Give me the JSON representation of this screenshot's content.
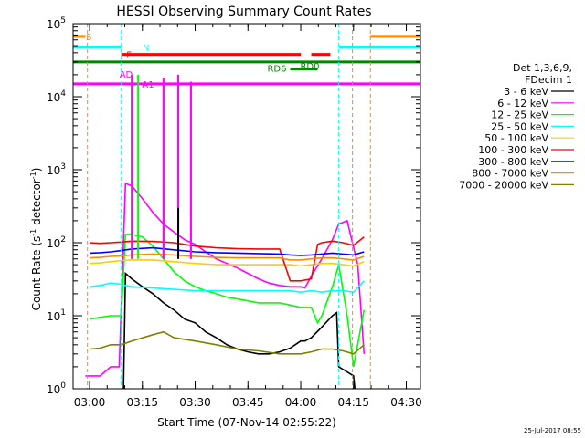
{
  "chart_data": {
    "type": "line",
    "title": "HESSI Observing Summary Count Rates",
    "xlabel": "Start Time (07-Nov-14 02:55:22)",
    "ylabel": "Count Rate (s⁻¹ detector⁻¹)",
    "ylabel_main": "Count Rate (s",
    "ylabel_sup1": "-1",
    "ylabel_mid": " detector",
    "ylabel_sup2": "-1",
    "ylabel_end": ")",
    "y_scale": "log",
    "xlim": [
      2.922,
      4.567
    ],
    "ylim": [
      1,
      100000
    ],
    "x_ticks": [
      {
        "value": 3.0,
        "label": "03:00"
      },
      {
        "value": 3.25,
        "label": "03:15"
      },
      {
        "value": 3.5,
        "label": "03:30"
      },
      {
        "value": 3.75,
        "label": "03:45"
      },
      {
        "value": 4.0,
        "label": "04:00"
      },
      {
        "value": 4.25,
        "label": "04:15"
      },
      {
        "value": 4.5,
        "label": "04:30"
      }
    ],
    "y_ticks": [
      {
        "value": 1,
        "base": "10",
        "exp": "0"
      },
      {
        "value": 10,
        "base": "10",
        "exp": "1"
      },
      {
        "value": 100,
        "base": "10",
        "exp": "2"
      },
      {
        "value": 1000,
        "base": "10",
        "exp": "3"
      },
      {
        "value": 10000,
        "base": "10",
        "exp": "4"
      },
      {
        "value": 100000,
        "base": "10",
        "exp": "5"
      }
    ],
    "legend_title": [
      "Det 1,3,6,9,",
      "FDecim 1"
    ],
    "series": [
      {
        "name": "3 - 6 keV",
        "color": "#000000",
        "points": [
          [
            3.16,
            0.8
          ],
          [
            3.17,
            38
          ],
          [
            3.2,
            32
          ],
          [
            3.25,
            25
          ],
          [
            3.3,
            20
          ],
          [
            3.35,
            15
          ],
          [
            3.4,
            12
          ],
          [
            3.45,
            9
          ],
          [
            3.5,
            8
          ],
          [
            3.55,
            6
          ],
          [
            3.6,
            5
          ],
          [
            3.65,
            4
          ],
          [
            3.7,
            3.5
          ],
          [
            3.75,
            3.2
          ],
          [
            3.8,
            3
          ],
          [
            3.85,
            3
          ],
          [
            3.9,
            3.2
          ],
          [
            3.95,
            3.6
          ],
          [
            4.0,
            4.5
          ],
          [
            4.02,
            4.5
          ],
          [
            4.05,
            5
          ],
          [
            4.1,
            7
          ],
          [
            4.15,
            10
          ],
          [
            4.17,
            11
          ],
          [
            4.18,
            2
          ],
          [
            4.25,
            1.5
          ],
          [
            4.26,
            0.8
          ]
        ]
      },
      {
        "name": "6 - 12 keV",
        "color": "#ff00ff",
        "points": [
          [
            2.98,
            1.5
          ],
          [
            3.05,
            1.5
          ],
          [
            3.1,
            2
          ],
          [
            3.14,
            2
          ],
          [
            3.17,
            650
          ],
          [
            3.2,
            600
          ],
          [
            3.25,
            400
          ],
          [
            3.3,
            260
          ],
          [
            3.35,
            180
          ],
          [
            3.4,
            140
          ],
          [
            3.45,
            110
          ],
          [
            3.5,
            95
          ],
          [
            3.55,
            75
          ],
          [
            3.6,
            60
          ],
          [
            3.7,
            45
          ],
          [
            3.75,
            38
          ],
          [
            3.8,
            32
          ],
          [
            3.85,
            28
          ],
          [
            3.9,
            26
          ],
          [
            3.95,
            25
          ],
          [
            4.0,
            25
          ],
          [
            4.02,
            24
          ],
          [
            4.05,
            35
          ],
          [
            4.1,
            60
          ],
          [
            4.15,
            110
          ],
          [
            4.18,
            180
          ],
          [
            4.22,
            200
          ],
          [
            4.27,
            50
          ],
          [
            4.3,
            3
          ]
        ]
      },
      {
        "name": "12 - 25 keV",
        "color": "#00ff00",
        "points": [
          [
            3.0,
            9
          ],
          [
            3.05,
            9.5
          ],
          [
            3.1,
            10
          ],
          [
            3.15,
            10
          ],
          [
            3.17,
            130
          ],
          [
            3.2,
            130
          ],
          [
            3.25,
            120
          ],
          [
            3.3,
            90
          ],
          [
            3.35,
            60
          ],
          [
            3.4,
            40
          ],
          [
            3.45,
            30
          ],
          [
            3.5,
            25
          ],
          [
            3.55,
            22
          ],
          [
            3.6,
            20
          ],
          [
            3.65,
            18
          ],
          [
            3.7,
            17
          ],
          [
            3.75,
            16
          ],
          [
            3.8,
            15
          ],
          [
            3.85,
            15
          ],
          [
            3.9,
            15
          ],
          [
            3.95,
            14
          ],
          [
            4.0,
            13
          ],
          [
            4.02,
            13
          ],
          [
            4.05,
            13
          ],
          [
            4.08,
            8
          ],
          [
            4.1,
            10
          ],
          [
            4.15,
            25
          ],
          [
            4.18,
            50
          ],
          [
            4.22,
            10
          ],
          [
            4.25,
            2
          ],
          [
            4.3,
            12
          ]
        ]
      },
      {
        "name": "25 - 50 keV",
        "color": "#00ffff",
        "points": [
          [
            3.0,
            25
          ],
          [
            3.05,
            26
          ],
          [
            3.1,
            28
          ],
          [
            3.15,
            27
          ],
          [
            3.17,
            26
          ],
          [
            3.2,
            25
          ],
          [
            3.3,
            24
          ],
          [
            3.4,
            23
          ],
          [
            3.5,
            22
          ],
          [
            3.6,
            22
          ],
          [
            3.7,
            22
          ],
          [
            3.8,
            22
          ],
          [
            3.9,
            22
          ],
          [
            3.95,
            22
          ],
          [
            4.0,
            21
          ],
          [
            4.05,
            22
          ],
          [
            4.1,
            21
          ],
          [
            4.15,
            22
          ],
          [
            4.2,
            22
          ],
          [
            4.25,
            21
          ],
          [
            4.3,
            30
          ]
        ]
      },
      {
        "name": "50 - 100 keV",
        "color": "#ffcc00",
        "points": [
          [
            3.0,
            52
          ],
          [
            3.05,
            53
          ],
          [
            3.1,
            55
          ],
          [
            3.15,
            57
          ],
          [
            3.2,
            58
          ],
          [
            3.3,
            58
          ],
          [
            3.4,
            55
          ],
          [
            3.5,
            52
          ],
          [
            3.6,
            50
          ],
          [
            3.7,
            50
          ],
          [
            3.8,
            50
          ],
          [
            3.9,
            50
          ],
          [
            3.95,
            50
          ],
          [
            4.0,
            48
          ],
          [
            4.05,
            50
          ],
          [
            4.1,
            52
          ],
          [
            4.15,
            52
          ],
          [
            4.2,
            50
          ],
          [
            4.25,
            48
          ],
          [
            4.3,
            55
          ]
        ]
      },
      {
        "name": "100 - 300 keV",
        "color": "#ff0000",
        "points": [
          [
            3.0,
            100
          ],
          [
            3.05,
            98
          ],
          [
            3.1,
            100
          ],
          [
            3.15,
            102
          ],
          [
            3.2,
            105
          ],
          [
            3.3,
            104
          ],
          [
            3.4,
            100
          ],
          [
            3.5,
            90
          ],
          [
            3.6,
            85
          ],
          [
            3.7,
            83
          ],
          [
            3.8,
            82
          ],
          [
            3.9,
            82
          ],
          [
            3.95,
            30
          ],
          [
            4.0,
            30
          ],
          [
            4.05,
            32
          ],
          [
            4.08,
            95
          ],
          [
            4.1,
            100
          ],
          [
            4.15,
            105
          ],
          [
            4.2,
            100
          ],
          [
            4.25,
            92
          ],
          [
            4.3,
            120
          ]
        ]
      },
      {
        "name": "300 - 800 keV",
        "color": "#0000ff",
        "points": [
          [
            3.0,
            72
          ],
          [
            3.05,
            73
          ],
          [
            3.1,
            75
          ],
          [
            3.15,
            78
          ],
          [
            3.2,
            82
          ],
          [
            3.3,
            85
          ],
          [
            3.4,
            80
          ],
          [
            3.5,
            75
          ],
          [
            3.6,
            73
          ],
          [
            3.7,
            72
          ],
          [
            3.8,
            71
          ],
          [
            3.9,
            70
          ],
          [
            3.95,
            68
          ],
          [
            4.0,
            67
          ],
          [
            4.05,
            68
          ],
          [
            4.1,
            70
          ],
          [
            4.15,
            72
          ],
          [
            4.2,
            70
          ],
          [
            4.25,
            68
          ],
          [
            4.3,
            75
          ]
        ]
      },
      {
        "name": "800 - 7000 keV",
        "color": "#ff8800",
        "points": [
          [
            3.0,
            62
          ],
          [
            3.05,
            63
          ],
          [
            3.1,
            65
          ],
          [
            3.15,
            66
          ],
          [
            3.2,
            68
          ],
          [
            3.3,
            70
          ],
          [
            3.4,
            68
          ],
          [
            3.5,
            65
          ],
          [
            3.6,
            63
          ],
          [
            3.7,
            62
          ],
          [
            3.8,
            62
          ],
          [
            3.9,
            62
          ],
          [
            3.95,
            58
          ],
          [
            4.0,
            58
          ],
          [
            4.05,
            60
          ],
          [
            4.1,
            62
          ],
          [
            4.15,
            62
          ],
          [
            4.2,
            60
          ],
          [
            4.25,
            58
          ],
          [
            4.3,
            65
          ]
        ]
      },
      {
        "name": "7000 - 20000 keV",
        "color": "#808000",
        "points": [
          [
            3.0,
            3.5
          ],
          [
            3.05,
            3.6
          ],
          [
            3.1,
            4
          ],
          [
            3.15,
            4
          ],
          [
            3.2,
            4.5
          ],
          [
            3.3,
            5.5
          ],
          [
            3.35,
            6
          ],
          [
            3.4,
            5
          ],
          [
            3.5,
            4.5
          ],
          [
            3.6,
            4
          ],
          [
            3.7,
            3.5
          ],
          [
            3.8,
            3.3
          ],
          [
            3.9,
            3
          ],
          [
            3.95,
            3
          ],
          [
            4.0,
            3
          ],
          [
            4.05,
            3.2
          ],
          [
            4.1,
            3.5
          ],
          [
            4.15,
            3.5
          ],
          [
            4.2,
            3.3
          ],
          [
            4.25,
            3
          ],
          [
            4.3,
            4
          ]
        ]
      }
    ],
    "spikes": [
      {
        "x": 3.2,
        "y": 18000,
        "color": "#00ff00"
      },
      {
        "x": 3.23,
        "y": 20000,
        "color": "#00ff00"
      },
      {
        "x": 3.35,
        "y": 15000,
        "color": "#00ff00"
      },
      {
        "x": 3.42,
        "y": 15000,
        "color": "#00ff00"
      },
      {
        "x": 3.48,
        "y": 14000,
        "color": "#00ff00"
      },
      {
        "x": 3.2,
        "y": 20000,
        "color": "#ff00ff"
      },
      {
        "x": 3.35,
        "y": 18000,
        "color": "#ff00ff"
      },
      {
        "x": 3.42,
        "y": 20000,
        "color": "#ff00ff"
      },
      {
        "x": 3.48,
        "y": 16000,
        "color": "#ff00ff"
      },
      {
        "x": 3.42,
        "y": 300,
        "color": "#000000"
      }
    ],
    "status_bars": [
      {
        "label": "S",
        "color": "#ff8800",
        "y": 67000,
        "segments": [
          [
            2.922,
            2.98
          ],
          [
            4.33,
            4.567
          ]
        ]
      },
      {
        "label": "N",
        "color": "#00ffff",
        "y": 48000,
        "segments": [
          [
            2.922,
            3.15
          ],
          [
            4.18,
            4.567
          ]
        ]
      },
      {
        "label": "F",
        "color": "#ff0000",
        "y": 38000,
        "segments": [
          [
            3.15,
            4.0
          ],
          [
            4.05,
            4.14
          ]
        ]
      },
      {
        "label": "RD0",
        "color": "#008800",
        "y": 30000,
        "segments": [
          [
            2.922,
            4.567
          ]
        ]
      },
      {
        "label": "RD6",
        "color": "#008800",
        "y": 24000,
        "segments": [
          [
            3.95,
            4.08
          ]
        ]
      },
      {
        "label": "AD",
        "color": "#ff00ff",
        "y": 15000,
        "segments": [
          [
            2.922,
            4.567
          ]
        ]
      },
      {
        "label": "A1",
        "color": "#ff00ff",
        "y": 15000,
        "segments": []
      }
    ],
    "event_lines": [
      {
        "x": 2.99,
        "color": "#ff8800"
      },
      {
        "x": 3.15,
        "color": "#00ffff"
      },
      {
        "x": 4.18,
        "color": "#00ffff"
      },
      {
        "x": 4.245,
        "color": "#ff8800"
      },
      {
        "x": 4.33,
        "color": "#ff8800"
      }
    ],
    "legend_position": "right",
    "grid": false
  },
  "footer": {
    "timestamp": "25-Jul-2017 08:55"
  }
}
